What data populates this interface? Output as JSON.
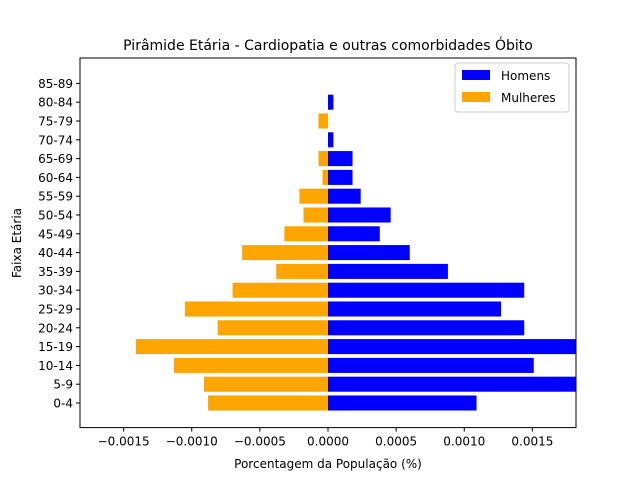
{
  "chart_data": {
    "type": "bar",
    "orientation": "horizontal",
    "title": "Pirâmide Etária - Cardiopatia e outras comorbidades Óbito",
    "xlabel": "Porcentagem da População (%)",
    "ylabel": "Faixa Etária",
    "xlim": [
      -0.00182,
      0.00182
    ],
    "xticks": [
      -0.0015,
      -0.001,
      -0.0005,
      0.0,
      0.0005,
      0.001,
      0.0015
    ],
    "xtick_labels": [
      "−0.0015",
      "−0.0010",
      "−0.0005",
      "0.0000",
      "0.0005",
      "0.0010",
      "0.0015"
    ],
    "grid": false,
    "legend_position": "top-right",
    "categories": [
      "0-4",
      "5-9",
      "10-14",
      "15-19",
      "20-24",
      "25-29",
      "30-34",
      "35-39",
      "40-44",
      "45-49",
      "50-54",
      "55-59",
      "60-64",
      "65-69",
      "70-74",
      "75-79",
      "80-84",
      "85-89"
    ],
    "series": [
      {
        "name": "Homens",
        "color": "#0000ff",
        "values": [
          0.00109,
          0.00182,
          0.00151,
          0.00182,
          0.00144,
          0.00127,
          0.00144,
          0.00088,
          0.0006,
          0.00038,
          0.00046,
          0.00024,
          0.00018,
          0.00018,
          4e-05,
          0.0,
          4e-05,
          0.0
        ]
      },
      {
        "name": "Mulheres",
        "color": "#ffa500",
        "values": [
          -0.00088,
          -0.00091,
          -0.00113,
          -0.00141,
          -0.00081,
          -0.00105,
          -0.0007,
          -0.00038,
          -0.00063,
          -0.00032,
          -0.00018,
          -0.00021,
          -4e-05,
          -7e-05,
          0.0,
          -7e-05,
          0.0,
          0.0
        ]
      }
    ]
  }
}
